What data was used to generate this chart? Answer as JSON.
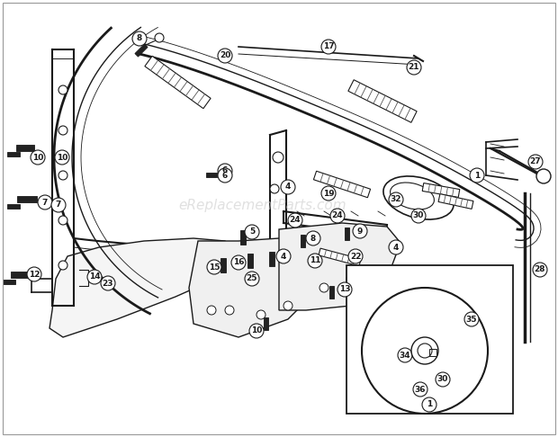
{
  "bg_color": "#ffffff",
  "line_color": "#1a1a1a",
  "watermark_text": "eReplacementParts.com",
  "watermark_color": "#cccccc",
  "fig_width": 6.2,
  "fig_height": 4.86,
  "dpi": 100
}
